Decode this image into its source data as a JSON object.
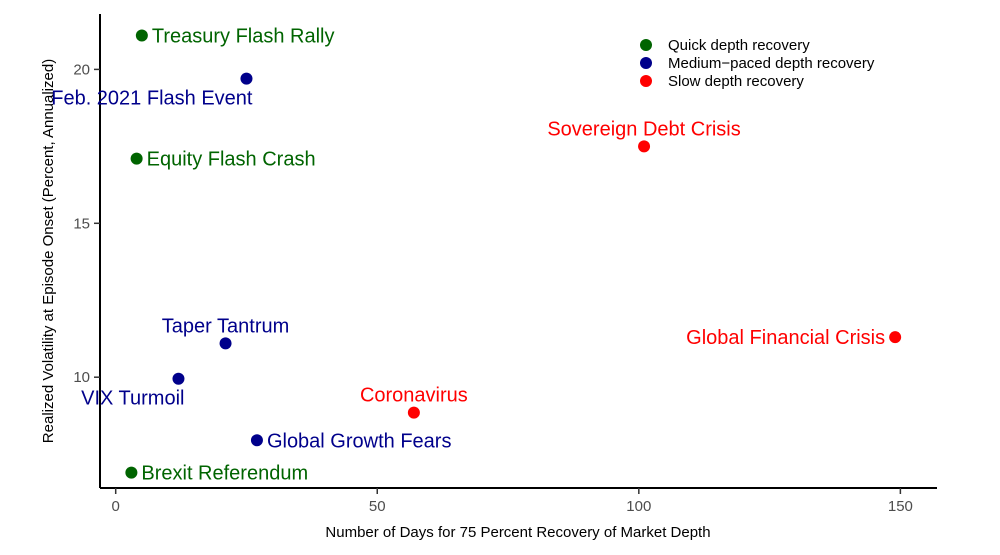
{
  "chart_data": {
    "type": "scatter",
    "xlabel": "Number of Days for 75 Percent Recovery of Market Depth",
    "ylabel": "Realized Volatility at Episode Onset (Percent, Annualized)",
    "xlim": [
      -3,
      157
    ],
    "ylim": [
      6.4,
      21.8
    ],
    "xticks": [
      0,
      50,
      100,
      150
    ],
    "yticks": [
      10,
      15,
      20
    ],
    "grid": false,
    "legend_position": "top-right",
    "categories": [
      {
        "key": "quick",
        "name": "Quick depth recovery",
        "color": "#006400"
      },
      {
        "key": "medium",
        "name": "Medium−paced depth recovery",
        "color": "#00008B"
      },
      {
        "key": "slow",
        "name": "Slow depth recovery",
        "color": "#FF0000"
      }
    ],
    "points": [
      {
        "label": "Treasury Flash Rally",
        "x": 5,
        "y": 21.1,
        "category": "quick",
        "label_pos": "right"
      },
      {
        "label": "Feb. 2021 Flash Event",
        "x": 25,
        "y": 19.7,
        "category": "medium",
        "label_pos": "below-left"
      },
      {
        "label": "Equity Flash Crash",
        "x": 4,
        "y": 17.1,
        "category": "quick",
        "label_pos": "right"
      },
      {
        "label": "Sovereign Debt Crisis",
        "x": 101,
        "y": 17.5,
        "category": "slow",
        "label_pos": "above"
      },
      {
        "label": "Global Financial Crisis",
        "x": 149,
        "y": 11.3,
        "category": "slow",
        "label_pos": "left"
      },
      {
        "label": "Taper Tantrum",
        "x": 21,
        "y": 11.1,
        "category": "medium",
        "label_pos": "above"
      },
      {
        "label": "VIX Turmoil",
        "x": 12,
        "y": 9.95,
        "category": "medium",
        "label_pos": "below-left"
      },
      {
        "label": "Coronavirus",
        "x": 57,
        "y": 8.85,
        "category": "slow",
        "label_pos": "above"
      },
      {
        "label": "Global Growth Fears",
        "x": 27,
        "y": 7.95,
        "category": "medium",
        "label_pos": "right"
      },
      {
        "label": "Brexit Referendum",
        "x": 3,
        "y": 6.9,
        "category": "quick",
        "label_pos": "right"
      }
    ]
  }
}
